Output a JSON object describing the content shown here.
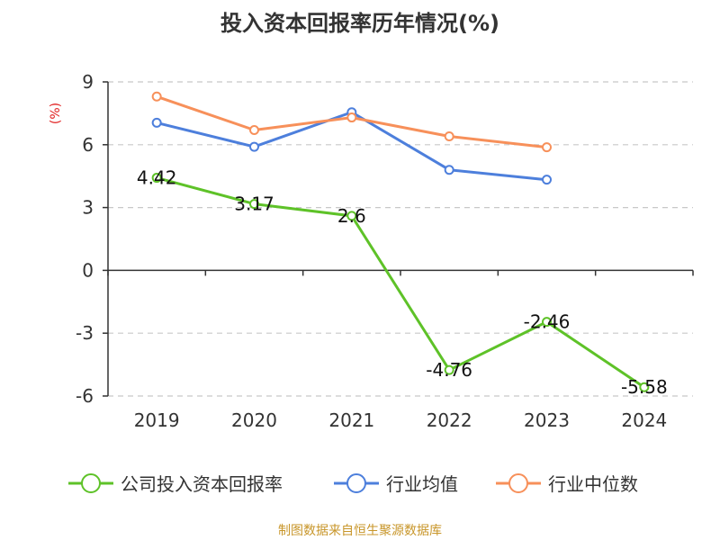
{
  "chart_data": {
    "type": "line",
    "title": "投入资本回报率历年情况(%)",
    "ylabel": "(%)",
    "xlabel": "",
    "categories": [
      "2019",
      "2020",
      "2021",
      "2022",
      "2023",
      "2024"
    ],
    "ylim": [
      -6,
      9
    ],
    "yticks": [
      9,
      6,
      3,
      0,
      -3,
      -6
    ],
    "grid": true,
    "series": [
      {
        "name": "公司投入资本回报率",
        "color": "#5ec228",
        "values": [
          4.42,
          3.17,
          2.6,
          -4.76,
          -2.46,
          -5.58
        ],
        "labels": [
          "4.42",
          "3.17",
          "2.6",
          "-4.76",
          "-2.46",
          "-5.58"
        ]
      },
      {
        "name": "行业均值",
        "color": "#4d7fdc",
        "values": [
          7.05,
          5.9,
          7.55,
          4.8,
          4.33,
          null
        ]
      },
      {
        "name": "行业中位数",
        "color": "#f7905a",
        "values": [
          8.3,
          6.7,
          7.3,
          6.4,
          5.88,
          null
        ]
      }
    ],
    "legend_position": "bottom",
    "source": "制图数据来自恒生聚源数据库"
  }
}
